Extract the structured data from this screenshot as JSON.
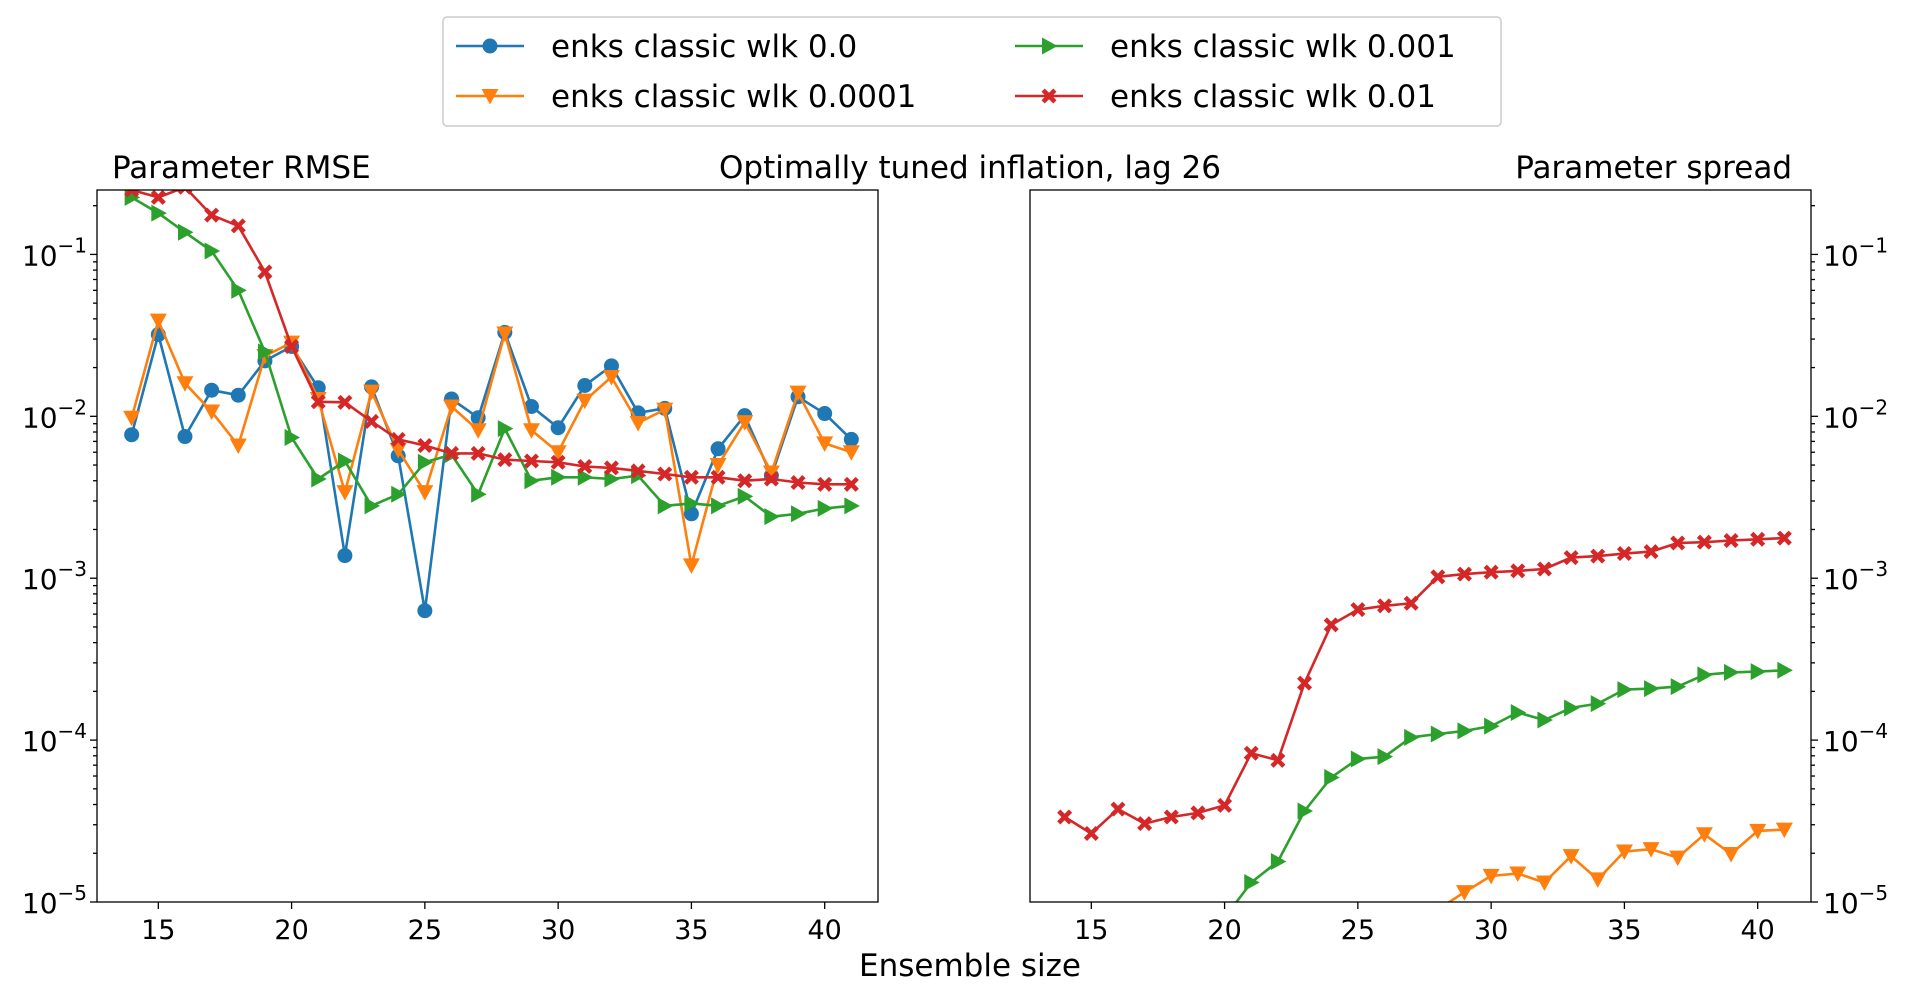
{
  "figure": {
    "suptitle": "Optimally tuned inflation, lag 26",
    "xlabel": "Ensemble size"
  },
  "colors": {
    "blue": "#1f77b4",
    "orange": "#ff7f0e",
    "green": "#2ca02c",
    "red": "#d62728"
  },
  "legend": {
    "placement": "top-center",
    "entries": [
      {
        "label": "enks classic wlk 0.0",
        "color": "#1f77b4",
        "marker": "circle"
      },
      {
        "label": "enks classic wlk 0.001",
        "color": "#2ca02c",
        "marker": "triangle-right"
      },
      {
        "label": "enks classic wlk 0.0001",
        "color": "#ff7f0e",
        "marker": "triangle-down"
      },
      {
        "label": "enks classic wlk 0.01",
        "color": "#d62728",
        "marker": "x-filled"
      }
    ]
  },
  "chart_data": [
    {
      "type": "line",
      "title": "Parameter RMSE",
      "xlabel": "",
      "ylabel": "",
      "yscale": "log",
      "xlim": [
        12.7,
        42.0
      ],
      "ylim": [
        1e-05,
        0.25
      ],
      "xticks": [
        "15",
        "20",
        "25",
        "30",
        "35",
        "40"
      ],
      "yticks": [
        "10^-5",
        "10^-4",
        "10^-3",
        "10^-2",
        "10^-1"
      ],
      "yaxis_side": "left",
      "grid": false,
      "series": [
        {
          "name": "enks classic wlk 0.0",
          "color": "#1f77b4",
          "marker": "circle",
          "x": [
            14,
            15,
            16,
            17,
            18,
            19,
            20,
            21,
            22,
            23,
            24,
            25,
            26,
            27,
            28,
            29,
            30,
            31,
            32,
            33,
            34,
            35,
            36,
            37,
            38,
            39,
            40,
            41
          ],
          "y": [
            0.0077,
            0.032,
            0.0075,
            0.0145,
            0.0135,
            0.022,
            0.027,
            0.015,
            0.00138,
            0.0152,
            0.0057,
            0.00063,
            0.0128,
            0.0098,
            0.033,
            0.0115,
            0.0085,
            0.0155,
            0.0205,
            0.0105,
            0.0112,
            0.0025,
            0.0063,
            0.0101,
            0.0043,
            0.0132,
            0.0104,
            0.0072
          ]
        },
        {
          "name": "enks classic wlk 0.0001",
          "color": "#ff7f0e",
          "marker": "triangle-down",
          "x": [
            14,
            15,
            16,
            17,
            18,
            19,
            20,
            21,
            22,
            23,
            24,
            25,
            26,
            27,
            28,
            29,
            30,
            31,
            32,
            33,
            34,
            35,
            36,
            37,
            38,
            39,
            40,
            41
          ],
          "y": [
            0.0098,
            0.039,
            0.016,
            0.0107,
            0.0066,
            0.0236,
            0.0285,
            0.0128,
            0.0034,
            0.0142,
            0.0062,
            0.0034,
            0.0115,
            0.0082,
            0.0325,
            0.0082,
            0.006,
            0.0125,
            0.0175,
            0.0091,
            0.011,
            0.0012,
            0.005,
            0.0092,
            0.0045,
            0.014,
            0.0068,
            0.006
          ]
        },
        {
          "name": "enks classic wlk 0.001",
          "color": "#2ca02c",
          "marker": "triangle-right",
          "x": [
            14,
            15,
            16,
            17,
            18,
            19,
            20,
            21,
            22,
            23,
            24,
            25,
            26,
            27,
            28,
            29,
            30,
            31,
            32,
            33,
            34,
            35,
            36,
            37,
            38,
            39,
            40,
            41
          ],
          "y": [
            0.225,
            0.18,
            0.137,
            0.105,
            0.06,
            0.025,
            0.0074,
            0.0041,
            0.0053,
            0.0028,
            0.0033,
            0.0052,
            0.0058,
            0.0033,
            0.0084,
            0.004,
            0.0042,
            0.0042,
            0.0041,
            0.0043,
            0.0028,
            0.0029,
            0.0028,
            0.0032,
            0.0024,
            0.0025,
            0.0027,
            0.0028
          ]
        },
        {
          "name": "enks classic wlk 0.01",
          "color": "#d62728",
          "marker": "x-filled",
          "x": [
            14,
            15,
            16,
            17,
            18,
            19,
            20,
            21,
            22,
            23,
            24,
            25,
            26,
            27,
            28,
            29,
            30,
            31,
            32,
            33,
            34,
            35,
            36,
            37,
            38,
            39,
            40,
            41
          ],
          "y": [
            0.25,
            0.225,
            0.26,
            0.175,
            0.15,
            0.078,
            0.027,
            0.0123,
            0.0122,
            0.0093,
            0.0072,
            0.0066,
            0.0059,
            0.0059,
            0.0054,
            0.0053,
            0.0052,
            0.0049,
            0.0048,
            0.0046,
            0.0044,
            0.0042,
            0.0042,
            0.004,
            0.0041,
            0.0039,
            0.0038,
            0.0038
          ]
        }
      ]
    },
    {
      "type": "line",
      "title": "Parameter spread",
      "xlabel": "",
      "ylabel": "",
      "yscale": "log",
      "xlim": [
        12.7,
        42.0
      ],
      "ylim": [
        1e-05,
        0.25
      ],
      "xticks": [
        "15",
        "20",
        "25",
        "30",
        "35",
        "40"
      ],
      "yticks": [
        "10^-5",
        "10^-4",
        "10^-3",
        "10^-2",
        "10^-1"
      ],
      "yaxis_side": "right",
      "grid": false,
      "series": [
        {
          "name": "enks classic wlk 0.0001",
          "color": "#ff7f0e",
          "marker": "triangle-down",
          "x": [
            28,
            29,
            30,
            31,
            32,
            33,
            34,
            35,
            36,
            37,
            38,
            39,
            40,
            41
          ],
          "y": [
            9e-06,
            1.15e-05,
            1.45e-05,
            1.5e-05,
            1.32e-05,
            1.92e-05,
            1.38e-05,
            2.05e-05,
            2.12e-05,
            1.88e-05,
            2.62e-05,
            1.98e-05,
            2.75e-05,
            2.8e-05
          ]
        },
        {
          "name": "enks classic wlk 0.001",
          "color": "#2ca02c",
          "marker": "triangle-right",
          "x": [
            20,
            21,
            22,
            23,
            24,
            25,
            26,
            27,
            28,
            29,
            30,
            31,
            32,
            33,
            34,
            35,
            36,
            37,
            38,
            39,
            40,
            41
          ],
          "y": [
            8e-06,
            1.32e-05,
            1.78e-05,
            3.65e-05,
            5.88e-05,
            7.65e-05,
            7.9e-05,
            0.000104,
            0.000109,
            0.000114,
            0.000122,
            0.000148,
            0.000133,
            0.000158,
            0.000168,
            0.000205,
            0.000208,
            0.000214,
            0.000253,
            0.000262,
            0.000265,
            0.00027
          ]
        },
        {
          "name": "enks classic wlk 0.01",
          "color": "#d62728",
          "marker": "x-filled",
          "x": [
            14,
            15,
            16,
            17,
            18,
            19,
            20,
            21,
            22,
            23,
            24,
            25,
            26,
            27,
            28,
            29,
            30,
            31,
            32,
            33,
            34,
            35,
            36,
            37,
            38,
            39,
            40,
            41
          ],
          "y": [
            3.35e-05,
            2.65e-05,
            3.75e-05,
            3.05e-05,
            3.35e-05,
            3.55e-05,
            3.95e-05,
            8.3e-05,
            7.5e-05,
            0.000225,
            0.000515,
            0.00064,
            0.000675,
            0.0007,
            0.00102,
            0.00106,
            0.00109,
            0.00111,
            0.00114,
            0.00134,
            0.00137,
            0.00142,
            0.00146,
            0.00165,
            0.00167,
            0.00171,
            0.00174,
            0.00177
          ]
        }
      ]
    }
  ]
}
